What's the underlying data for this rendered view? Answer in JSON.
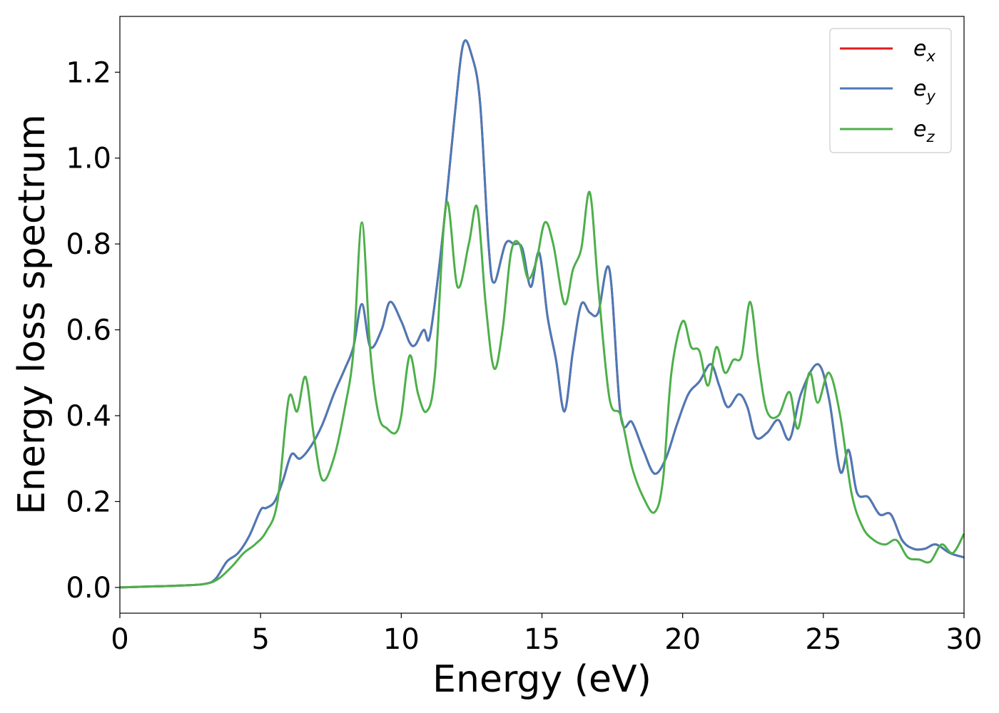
{
  "chart_data": {
    "type": "line",
    "title": "",
    "xlabel": "Energy (eV)",
    "ylabel": "Energy loss spectrum",
    "xlim": [
      0,
      30
    ],
    "ylim": [
      -0.06,
      1.33
    ],
    "xticks": [
      0,
      5,
      10,
      15,
      20,
      25,
      30
    ],
    "xtick_labels": [
      "0",
      "5",
      "10",
      "15",
      "20",
      "25",
      "30"
    ],
    "yticks": [
      0.0,
      0.2,
      0.4,
      0.6,
      0.8,
      1.0,
      1.2
    ],
    "ytick_labels": [
      "0.0",
      "0.2",
      "0.4",
      "0.6",
      "0.8",
      "1.0",
      "1.2"
    ],
    "grid": false,
    "legend_position": "top-right",
    "series": [
      {
        "name": "e_x",
        "label_main": "e",
        "label_sub": "x",
        "color": "#e41a1c",
        "x": [
          0,
          1,
          2,
          3,
          3.4,
          3.8,
          4.2,
          4.6,
          5.0,
          5.2,
          5.5,
          5.8,
          6.1,
          6.4,
          6.8,
          7.2,
          7.6,
          8.0,
          8.3,
          8.6,
          8.9,
          9.3,
          9.6,
          10.0,
          10.3,
          10.5,
          10.8,
          11.0,
          11.3,
          11.6,
          11.9,
          12.2,
          12.5,
          12.8,
          13.1,
          13.3,
          13.7,
          14.0,
          14.3,
          14.6,
          14.9,
          15.2,
          15.5,
          15.8,
          16.1,
          16.4,
          16.7,
          17.0,
          17.4,
          17.8,
          18.2,
          18.6,
          19.0,
          19.4,
          19.8,
          20.2,
          20.6,
          21.0,
          21.3,
          21.6,
          22.0,
          22.3,
          22.6,
          23.0,
          23.4,
          23.8,
          24.2,
          24.8,
          25.2,
          25.6,
          25.9,
          26.2,
          26.6,
          27.0,
          27.4,
          27.8,
          28.2,
          28.6,
          29.0,
          29.5,
          30.0
        ],
        "values": [
          0,
          0.002,
          0.004,
          0.008,
          0.02,
          0.06,
          0.08,
          0.12,
          0.18,
          0.185,
          0.2,
          0.25,
          0.31,
          0.3,
          0.33,
          0.38,
          0.45,
          0.51,
          0.56,
          0.66,
          0.56,
          0.6,
          0.665,
          0.62,
          0.57,
          0.565,
          0.6,
          0.58,
          0.72,
          0.9,
          1.1,
          1.265,
          1.24,
          1.13,
          0.8,
          0.71,
          0.8,
          0.8,
          0.79,
          0.7,
          0.78,
          0.63,
          0.53,
          0.41,
          0.55,
          0.66,
          0.64,
          0.64,
          0.74,
          0.4,
          0.385,
          0.32,
          0.265,
          0.3,
          0.38,
          0.45,
          0.48,
          0.52,
          0.47,
          0.42,
          0.45,
          0.42,
          0.35,
          0.36,
          0.39,
          0.345,
          0.45,
          0.52,
          0.44,
          0.27,
          0.32,
          0.22,
          0.21,
          0.17,
          0.17,
          0.11,
          0.09,
          0.09,
          0.1,
          0.08,
          0.07
        ]
      },
      {
        "name": "e_y",
        "label_main": "e",
        "label_sub": "y",
        "color": "#4a7ab8",
        "x": [
          0,
          1,
          2,
          3,
          3.4,
          3.8,
          4.2,
          4.6,
          5.0,
          5.2,
          5.5,
          5.8,
          6.1,
          6.4,
          6.8,
          7.2,
          7.6,
          8.0,
          8.3,
          8.6,
          8.9,
          9.3,
          9.6,
          10.0,
          10.3,
          10.5,
          10.8,
          11.0,
          11.3,
          11.6,
          11.9,
          12.2,
          12.5,
          12.8,
          13.1,
          13.3,
          13.7,
          14.0,
          14.3,
          14.6,
          14.9,
          15.2,
          15.5,
          15.8,
          16.1,
          16.4,
          16.7,
          17.0,
          17.4,
          17.8,
          18.2,
          18.6,
          19.0,
          19.4,
          19.8,
          20.2,
          20.6,
          21.0,
          21.3,
          21.6,
          22.0,
          22.3,
          22.6,
          23.0,
          23.4,
          23.8,
          24.2,
          24.8,
          25.2,
          25.6,
          25.9,
          26.2,
          26.6,
          27.0,
          27.4,
          27.8,
          28.2,
          28.6,
          29.0,
          29.5,
          30.0
        ],
        "values": [
          0,
          0.002,
          0.004,
          0.008,
          0.02,
          0.06,
          0.08,
          0.12,
          0.18,
          0.185,
          0.2,
          0.25,
          0.31,
          0.3,
          0.33,
          0.38,
          0.45,
          0.51,
          0.56,
          0.66,
          0.56,
          0.6,
          0.665,
          0.62,
          0.57,
          0.565,
          0.6,
          0.58,
          0.72,
          0.9,
          1.1,
          1.265,
          1.24,
          1.13,
          0.8,
          0.71,
          0.8,
          0.8,
          0.79,
          0.7,
          0.78,
          0.63,
          0.53,
          0.41,
          0.55,
          0.66,
          0.64,
          0.64,
          0.74,
          0.4,
          0.385,
          0.32,
          0.265,
          0.3,
          0.38,
          0.45,
          0.48,
          0.52,
          0.47,
          0.42,
          0.45,
          0.42,
          0.35,
          0.36,
          0.39,
          0.345,
          0.45,
          0.52,
          0.44,
          0.27,
          0.32,
          0.22,
          0.21,
          0.17,
          0.17,
          0.11,
          0.09,
          0.09,
          0.1,
          0.08,
          0.07
        ]
      },
      {
        "name": "e_z",
        "label_main": "e",
        "label_sub": "z",
        "color": "#4daf4a",
        "x": [
          0,
          1,
          2,
          3,
          3.5,
          4.0,
          4.4,
          4.8,
          5.2,
          5.6,
          6.0,
          6.3,
          6.6,
          6.9,
          7.2,
          7.6,
          8.0,
          8.3,
          8.6,
          8.9,
          9.2,
          9.5,
          9.8,
          10.0,
          10.3,
          10.6,
          10.9,
          11.2,
          11.6,
          12.0,
          12.4,
          12.7,
          13.0,
          13.3,
          13.6,
          13.9,
          14.2,
          14.5,
          14.8,
          15.1,
          15.4,
          15.8,
          16.1,
          16.4,
          16.7,
          17.0,
          17.4,
          17.8,
          18.2,
          18.6,
          19.0,
          19.3,
          19.6,
          20.0,
          20.3,
          20.6,
          20.9,
          21.2,
          21.5,
          21.8,
          22.1,
          22.4,
          22.7,
          23.0,
          23.4,
          23.8,
          24.1,
          24.5,
          24.8,
          25.2,
          25.6,
          26.0,
          26.4,
          26.8,
          27.2,
          27.6,
          28.0,
          28.4,
          28.8,
          29.2,
          29.6,
          30.0
        ],
        "values": [
          0,
          0.002,
          0.004,
          0.008,
          0.02,
          0.05,
          0.08,
          0.1,
          0.13,
          0.2,
          0.44,
          0.41,
          0.49,
          0.35,
          0.25,
          0.3,
          0.42,
          0.55,
          0.85,
          0.55,
          0.4,
          0.37,
          0.36,
          0.4,
          0.54,
          0.45,
          0.41,
          0.5,
          0.895,
          0.7,
          0.8,
          0.885,
          0.66,
          0.51,
          0.6,
          0.78,
          0.8,
          0.72,
          0.76,
          0.85,
          0.8,
          0.66,
          0.74,
          0.79,
          0.92,
          0.7,
          0.44,
          0.4,
          0.28,
          0.21,
          0.175,
          0.25,
          0.5,
          0.62,
          0.56,
          0.55,
          0.47,
          0.56,
          0.5,
          0.53,
          0.54,
          0.665,
          0.52,
          0.41,
          0.4,
          0.455,
          0.37,
          0.5,
          0.43,
          0.5,
          0.4,
          0.22,
          0.14,
          0.11,
          0.1,
          0.11,
          0.07,
          0.065,
          0.06,
          0.1,
          0.08,
          0.125
        ]
      }
    ]
  }
}
